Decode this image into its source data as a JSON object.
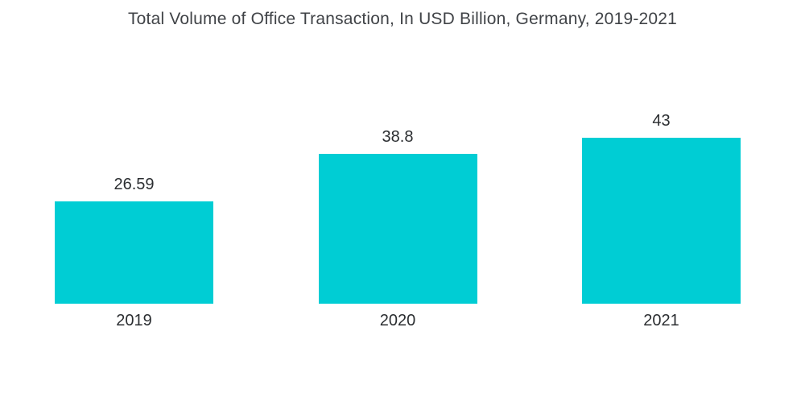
{
  "chart_data": {
    "type": "bar",
    "title": "Total Volume of Office Transaction, In USD Billion, Germany, 2019-2021",
    "categories": [
      "2019",
      "2020",
      "2021"
    ],
    "values": [
      26.59,
      38.8,
      43
    ],
    "value_labels": [
      "26.59",
      "38.8",
      "43"
    ],
    "xlabel": "",
    "ylabel": "",
    "ylim": [
      0,
      45
    ],
    "bar_color": "#00CDD4",
    "grid": false,
    "legend": false,
    "background_color": "#FFFFFF"
  }
}
